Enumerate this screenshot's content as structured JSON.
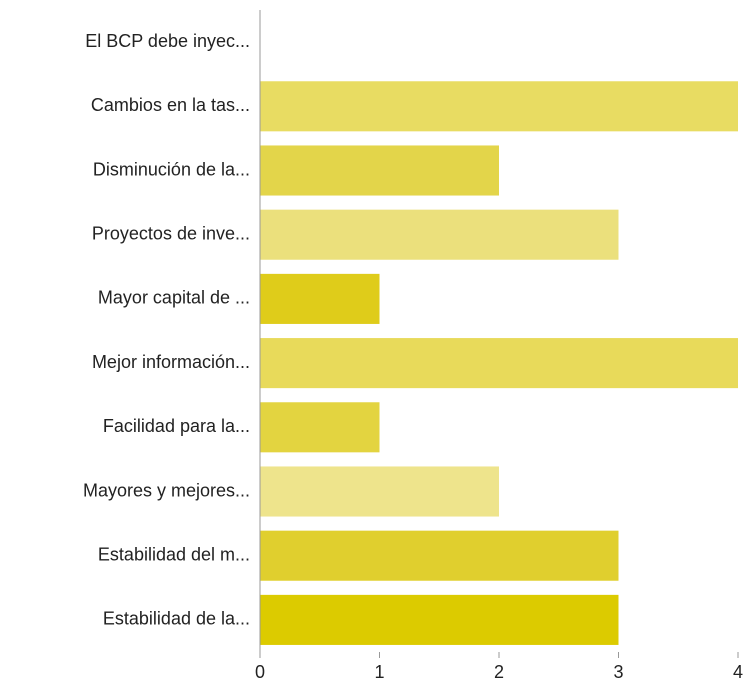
{
  "chart_data": {
    "type": "bar",
    "orientation": "horizontal",
    "categories": [
      "El BCP debe inyec...",
      "Cambios en la tas...",
      "Disminución de la...",
      "Proyectos de inve...",
      "Mayor capital de ...",
      "Mejor información...",
      "Facilidad para la...",
      "Mayores y mejores...",
      "Estabilidad del m...",
      "Estabilidad de la..."
    ],
    "values": [
      0,
      4,
      2,
      3,
      1,
      4,
      1,
      2,
      3,
      3
    ],
    "colors": [
      "#e6d850",
      "#e8dc62",
      "#e3d54a",
      "#ebe07c",
      "#dfcc1a",
      "#e8da5a",
      "#e3d440",
      "#eee48c",
      "#e0cf2e",
      "#dccb00"
    ],
    "xlim": [
      0,
      4
    ],
    "xticks": [
      0,
      1,
      2,
      3,
      4
    ],
    "grid": false
  }
}
